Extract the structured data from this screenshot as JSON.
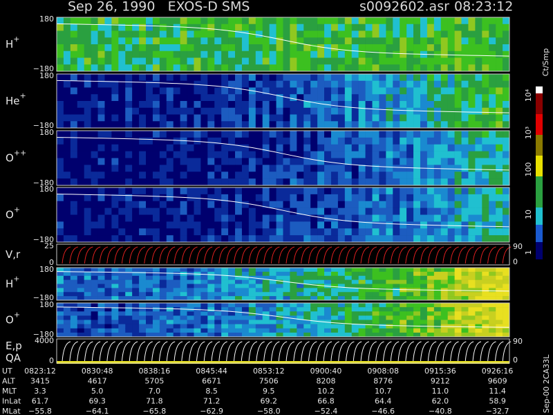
{
  "header": {
    "title": "Sep 26, 1990   EXOS-D SMS",
    "file": "s0092602.asr",
    "time": "08:23:12"
  },
  "panels": [
    {
      "label": "H",
      "charge": "+",
      "left_ticks": [
        "180",
        "−180"
      ]
    },
    {
      "label": "He",
      "charge": "+",
      "left_ticks": [
        "180",
        "−180"
      ]
    },
    {
      "label": "O",
      "charge": "++",
      "left_ticks": [
        "180",
        "−180"
      ]
    },
    {
      "label": "O",
      "charge": "+",
      "left_ticks": [
        "180",
        "−180"
      ]
    },
    {
      "label": "V,r",
      "left_ticks": [
        "25",
        "0"
      ],
      "right_ticks": [
        "90",
        "0"
      ]
    },
    {
      "label": "H",
      "charge": "+",
      "left_ticks": [
        "180",
        "−180"
      ]
    },
    {
      "label": "O",
      "charge": "+",
      "left_ticks": [
        "180",
        "−180"
      ]
    },
    {
      "label": "E,p",
      "sublabel": "QA",
      "left_ticks": [
        "4000",
        "0"
      ],
      "right_ticks": [
        "90",
        "0"
      ]
    }
  ],
  "colorbar": {
    "unit": "Ct/Smp",
    "labels": [
      "10⁴",
      "10³",
      "100",
      "10",
      "1"
    ]
  },
  "side_note": "Sep-00 2CA33L",
  "footer": {
    "rows": [
      {
        "label": "UT",
        "values": [
          "0823:12",
          "0830:48",
          "0838:16",
          "0845:44",
          "0853:12",
          "0900:40",
          "0908:08",
          "0915:36",
          "0926:16"
        ]
      },
      {
        "label": "ALT",
        "values": [
          "3415",
          "4617",
          "5705",
          "6671",
          "7506",
          "8208",
          "8776",
          "9212",
          "9609"
        ]
      },
      {
        "label": "MLT",
        "values": [
          "3.3",
          "5.0",
          "7.0",
          "8.5",
          "9.5",
          "10.2",
          "10.7",
          "11.0",
          "11.4"
        ]
      },
      {
        "label": "InLat",
        "values": [
          "61.7",
          "69.3",
          "71.8",
          "71.2",
          "69.2",
          "66.8",
          "64.4",
          "62.0",
          "58.9"
        ]
      },
      {
        "label": "MLat",
        "values": [
          "−55.8",
          "−64.1",
          "−65.8",
          "−62.9",
          "−58.0",
          "−52.4",
          "−46.6",
          "−40.8",
          "−32.7"
        ]
      }
    ]
  }
}
